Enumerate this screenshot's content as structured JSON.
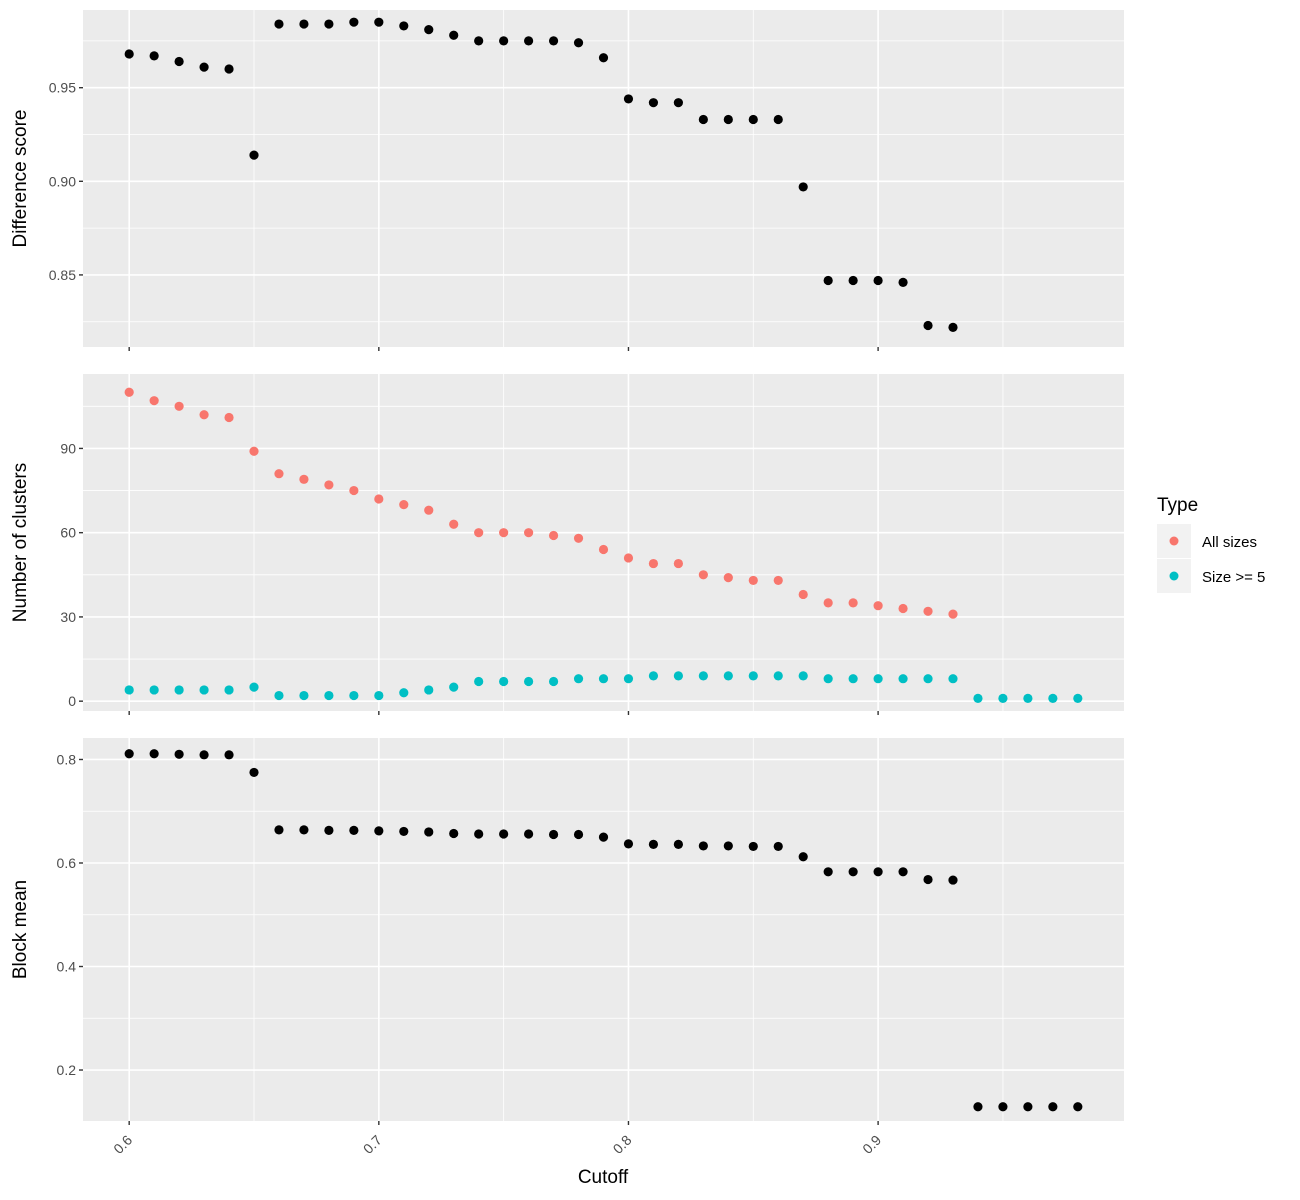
{
  "chart_data": {
    "type": "scatter",
    "xlabel": "Cutoff",
    "x_ticks": [
      0.6,
      0.7,
      0.8,
      0.9
    ],
    "x_tick_labels": [
      "0.6",
      "0.7",
      "0.8",
      "0.9"
    ],
    "xlim": [
      0.5815,
      0.9985
    ],
    "grid": true,
    "legend": {
      "title": "Type",
      "position": "right",
      "entries": [
        {
          "label": "All sizes",
          "color": "#F8766D"
        },
        {
          "label": "Size >= 5",
          "color": "#00BFC4"
        }
      ]
    },
    "panels": [
      {
        "ylabel": "Difference score",
        "ylim": [
          0.8115,
          0.9915
        ],
        "y_ticks": [
          0.85,
          0.9,
          0.95
        ],
        "y_tick_labels": [
          "0.85",
          "0.90",
          "0.95"
        ],
        "series": [
          {
            "color": "#000000",
            "points": [
              [
                0.6,
                0.968
              ],
              [
                0.61,
                0.967
              ],
              [
                0.62,
                0.964
              ],
              [
                0.63,
                0.961
              ],
              [
                0.64,
                0.96
              ],
              [
                0.65,
                0.914
              ],
              [
                0.66,
                0.984
              ],
              [
                0.67,
                0.984
              ],
              [
                0.68,
                0.984
              ],
              [
                0.69,
                0.985
              ],
              [
                0.7,
                0.985
              ],
              [
                0.71,
                0.983
              ],
              [
                0.72,
                0.981
              ],
              [
                0.73,
                0.978
              ],
              [
                0.74,
                0.975
              ],
              [
                0.75,
                0.975
              ],
              [
                0.76,
                0.975
              ],
              [
                0.77,
                0.975
              ],
              [
                0.78,
                0.974
              ],
              [
                0.79,
                0.966
              ],
              [
                0.8,
                0.944
              ],
              [
                0.81,
                0.942
              ],
              [
                0.82,
                0.942
              ],
              [
                0.83,
                0.933
              ],
              [
                0.84,
                0.933
              ],
              [
                0.85,
                0.933
              ],
              [
                0.86,
                0.933
              ],
              [
                0.87,
                0.897
              ],
              [
                0.88,
                0.847
              ],
              [
                0.89,
                0.847
              ],
              [
                0.9,
                0.847
              ],
              [
                0.91,
                0.846
              ],
              [
                0.92,
                0.823
              ],
              [
                0.93,
                0.822
              ]
            ]
          }
        ]
      },
      {
        "ylabel": "Number of clusters",
        "ylim": [
          -3.5,
          116.5
        ],
        "y_ticks": [
          0,
          30,
          60,
          90
        ],
        "y_tick_labels": [
          "0",
          "30",
          "60",
          "90"
        ],
        "series": [
          {
            "name": "All sizes",
            "color": "#F8766D",
            "points": [
              [
                0.6,
                110
              ],
              [
                0.61,
                107
              ],
              [
                0.62,
                105
              ],
              [
                0.63,
                102
              ],
              [
                0.64,
                101
              ],
              [
                0.65,
                89
              ],
              [
                0.66,
                81
              ],
              [
                0.67,
                79
              ],
              [
                0.68,
                77
              ],
              [
                0.69,
                75
              ],
              [
                0.7,
                72
              ],
              [
                0.71,
                70
              ],
              [
                0.72,
                68
              ],
              [
                0.73,
                63
              ],
              [
                0.74,
                60
              ],
              [
                0.75,
                60
              ],
              [
                0.76,
                60
              ],
              [
                0.77,
                59
              ],
              [
                0.78,
                58
              ],
              [
                0.79,
                54
              ],
              [
                0.8,
                51
              ],
              [
                0.81,
                49
              ],
              [
                0.82,
                49
              ],
              [
                0.83,
                45
              ],
              [
                0.84,
                44
              ],
              [
                0.85,
                43
              ],
              [
                0.86,
                43
              ],
              [
                0.87,
                38
              ],
              [
                0.88,
                35
              ],
              [
                0.89,
                35
              ],
              [
                0.9,
                34
              ],
              [
                0.91,
                33
              ],
              [
                0.92,
                32
              ],
              [
                0.93,
                31
              ]
            ]
          },
          {
            "name": "Size >= 5",
            "color": "#00BFC4",
            "points": [
              [
                0.6,
                4
              ],
              [
                0.61,
                4
              ],
              [
                0.62,
                4
              ],
              [
                0.63,
                4
              ],
              [
                0.64,
                4
              ],
              [
                0.65,
                5
              ],
              [
                0.66,
                2
              ],
              [
                0.67,
                2
              ],
              [
                0.68,
                2
              ],
              [
                0.69,
                2
              ],
              [
                0.7,
                2
              ],
              [
                0.71,
                3
              ],
              [
                0.72,
                4
              ],
              [
                0.73,
                5
              ],
              [
                0.74,
                7
              ],
              [
                0.75,
                7
              ],
              [
                0.76,
                7
              ],
              [
                0.77,
                7
              ],
              [
                0.78,
                8
              ],
              [
                0.79,
                8
              ],
              [
                0.8,
                8
              ],
              [
                0.81,
                9
              ],
              [
                0.82,
                9
              ],
              [
                0.83,
                9
              ],
              [
                0.84,
                9
              ],
              [
                0.85,
                9
              ],
              [
                0.86,
                9
              ],
              [
                0.87,
                9
              ],
              [
                0.88,
                8
              ],
              [
                0.89,
                8
              ],
              [
                0.9,
                8
              ],
              [
                0.91,
                8
              ],
              [
                0.92,
                8
              ],
              [
                0.93,
                8
              ],
              [
                0.94,
                1
              ],
              [
                0.95,
                1
              ],
              [
                0.96,
                1
              ],
              [
                0.97,
                1
              ],
              [
                0.98,
                1
              ]
            ]
          }
        ]
      },
      {
        "ylabel": "Block mean",
        "ylim": [
          0.1015,
          0.8415
        ],
        "y_ticks": [
          0.2,
          0.4,
          0.6,
          0.8
        ],
        "y_tick_labels": [
          "0.2",
          "0.4",
          "0.6",
          "0.8"
        ],
        "series": [
          {
            "color": "#000000",
            "points": [
              [
                0.6,
                0.811
              ],
              [
                0.61,
                0.811
              ],
              [
                0.62,
                0.81
              ],
              [
                0.63,
                0.809
              ],
              [
                0.64,
                0.809
              ],
              [
                0.65,
                0.775
              ],
              [
                0.66,
                0.664
              ],
              [
                0.67,
                0.664
              ],
              [
                0.68,
                0.663
              ],
              [
                0.69,
                0.663
              ],
              [
                0.7,
                0.662
              ],
              [
                0.71,
                0.661
              ],
              [
                0.72,
                0.66
              ],
              [
                0.73,
                0.657
              ],
              [
                0.74,
                0.656
              ],
              [
                0.75,
                0.656
              ],
              [
                0.76,
                0.656
              ],
              [
                0.77,
                0.655
              ],
              [
                0.78,
                0.655
              ],
              [
                0.79,
                0.65
              ],
              [
                0.8,
                0.637
              ],
              [
                0.81,
                0.636
              ],
              [
                0.82,
                0.636
              ],
              [
                0.83,
                0.633
              ],
              [
                0.84,
                0.633
              ],
              [
                0.85,
                0.632
              ],
              [
                0.86,
                0.632
              ],
              [
                0.87,
                0.612
              ],
              [
                0.88,
                0.583
              ],
              [
                0.89,
                0.583
              ],
              [
                0.9,
                0.583
              ],
              [
                0.91,
                0.583
              ],
              [
                0.92,
                0.568
              ],
              [
                0.93,
                0.567
              ],
              [
                0.94,
                0.129
              ],
              [
                0.95,
                0.129
              ],
              [
                0.96,
                0.129
              ],
              [
                0.97,
                0.129
              ],
              [
                0.98,
                0.129
              ]
            ]
          }
        ]
      }
    ]
  }
}
